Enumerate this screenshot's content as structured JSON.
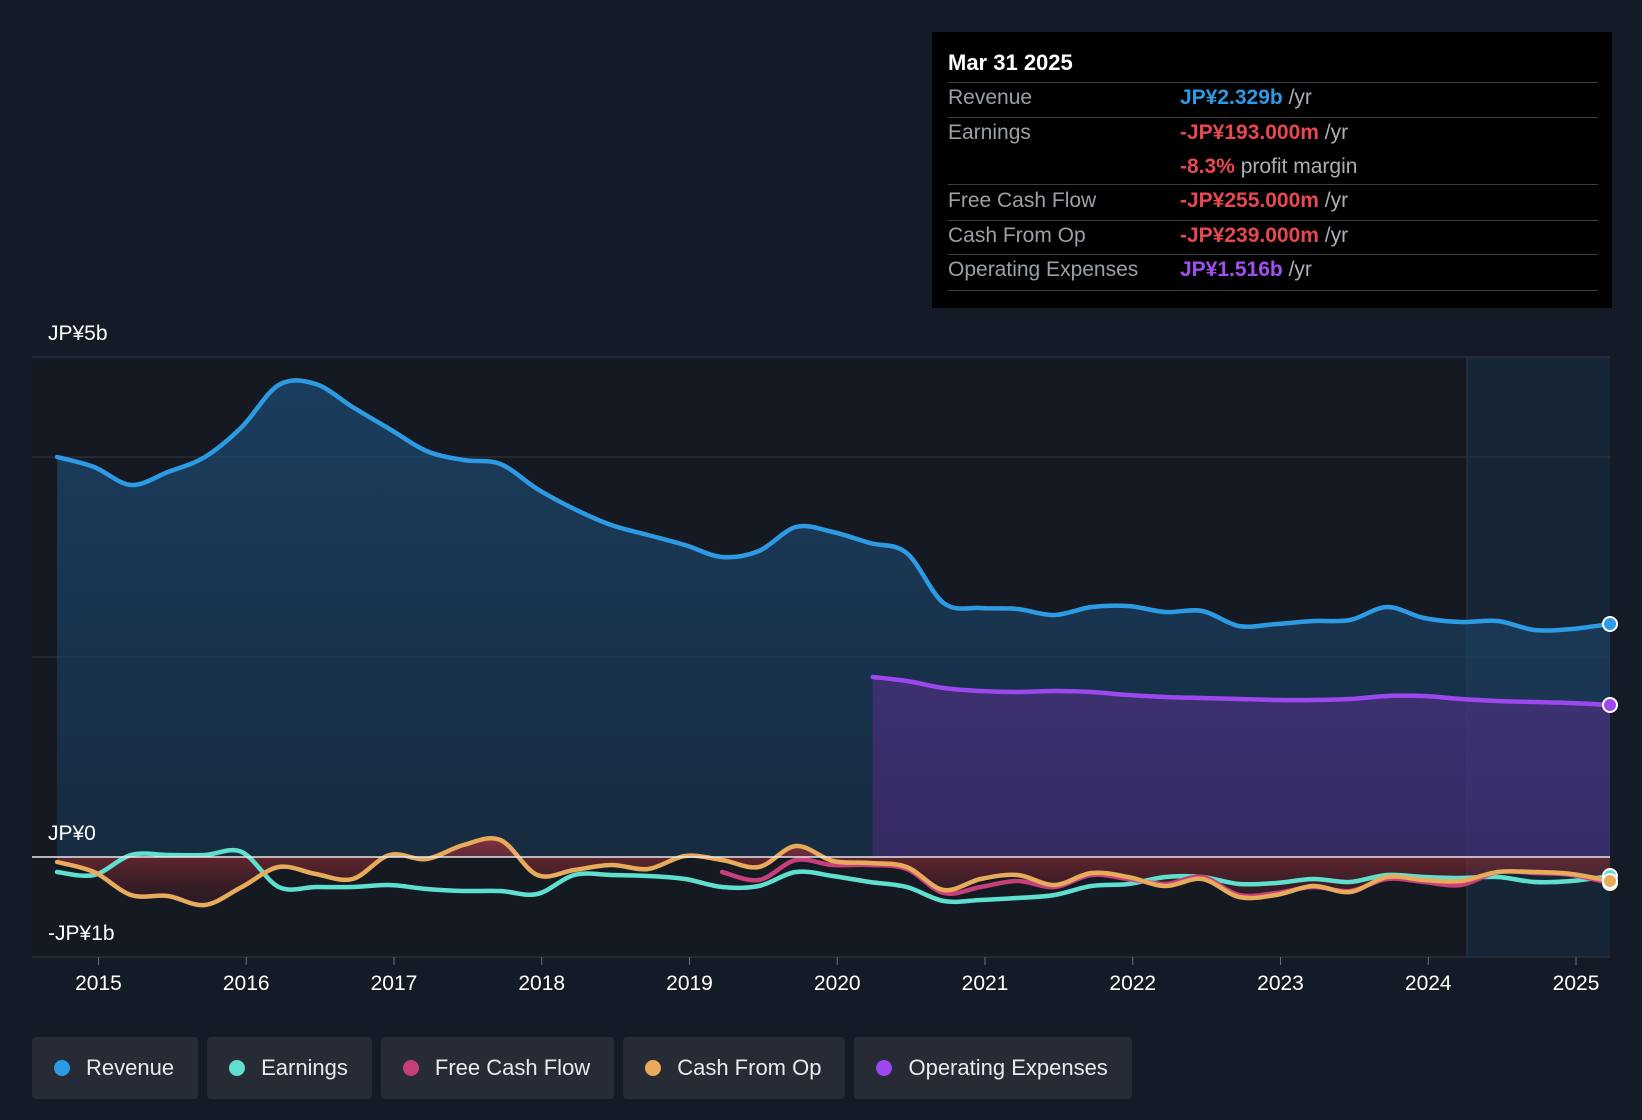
{
  "tooltip": {
    "date": "Mar 31 2025",
    "rows": [
      {
        "label": "Revenue",
        "value": "JP¥2.329b",
        "unit": "/yr",
        "color": "#2d9be4"
      },
      {
        "label": "Earnings",
        "value": "-JP¥193.000m",
        "unit": "/yr",
        "color": "#e8484f"
      },
      {
        "label": "",
        "value": "-8.3%",
        "unit": "profit margin",
        "color": "#e8484f"
      },
      {
        "label": "Free Cash Flow",
        "value": "-JP¥255.000m",
        "unit": "/yr",
        "color": "#e8484f"
      },
      {
        "label": "Cash From Op",
        "value": "-JP¥239.000m",
        "unit": "/yr",
        "color": "#e8484f"
      },
      {
        "label": "Operating Expenses",
        "value": "JP¥1.516b",
        "unit": "/yr",
        "color": "#a24ff0"
      }
    ]
  },
  "legend": [
    {
      "label": "Revenue",
      "color": "#2d9be4"
    },
    {
      "label": "Earnings",
      "color": "#5fe0cf"
    },
    {
      "label": "Free Cash Flow",
      "color": "#c73f7a"
    },
    {
      "label": "Cash From Op",
      "color": "#e8ab5c"
    },
    {
      "label": "Operating Expenses",
      "color": "#9d48ef"
    }
  ],
  "chart_data": {
    "type": "area",
    "y_labels": {
      "top": "JP¥5b",
      "zero": "JP¥0",
      "bottom": "-JP¥1b"
    },
    "ylim": [
      -1,
      5
    ],
    "xlim": [
      2014.55,
      2025.23
    ],
    "x_ticks": [
      "2015",
      "2016",
      "2017",
      "2018",
      "2019",
      "2020",
      "2021",
      "2022",
      "2023",
      "2024",
      "2025"
    ],
    "series": [
      {
        "name": "Revenue",
        "color": "#2d9be4",
        "points": [
          [
            2014.72,
            4.0
          ],
          [
            2014.97,
            3.9
          ],
          [
            2015.22,
            3.72
          ],
          [
            2015.47,
            3.85
          ],
          [
            2015.72,
            4.0
          ],
          [
            2015.97,
            4.3
          ],
          [
            2016.22,
            4.72
          ],
          [
            2016.47,
            4.73
          ],
          [
            2016.72,
            4.5
          ],
          [
            2016.97,
            4.28
          ],
          [
            2017.22,
            4.06
          ],
          [
            2017.47,
            3.97
          ],
          [
            2017.72,
            3.93
          ],
          [
            2017.97,
            3.68
          ],
          [
            2018.22,
            3.48
          ],
          [
            2018.47,
            3.32
          ],
          [
            2018.72,
            3.22
          ],
          [
            2018.97,
            3.12
          ],
          [
            2019.22,
            3.0
          ],
          [
            2019.47,
            3.06
          ],
          [
            2019.72,
            3.3
          ],
          [
            2019.97,
            3.25
          ],
          [
            2020.22,
            3.14
          ],
          [
            2020.47,
            3.04
          ],
          [
            2020.72,
            2.54
          ],
          [
            2020.97,
            2.49
          ],
          [
            2021.22,
            2.48
          ],
          [
            2021.47,
            2.42
          ],
          [
            2021.72,
            2.5
          ],
          [
            2021.97,
            2.51
          ],
          [
            2022.22,
            2.45
          ],
          [
            2022.47,
            2.46
          ],
          [
            2022.72,
            2.31
          ],
          [
            2022.97,
            2.33
          ],
          [
            2023.22,
            2.36
          ],
          [
            2023.47,
            2.37
          ],
          [
            2023.72,
            2.5
          ],
          [
            2023.97,
            2.39
          ],
          [
            2024.22,
            2.35
          ],
          [
            2024.47,
            2.36
          ],
          [
            2024.72,
            2.27
          ],
          [
            2024.97,
            2.28
          ],
          [
            2025.23,
            2.33
          ]
        ]
      },
      {
        "name": "Operating Expenses",
        "color": "#9d48ef",
        "points": [
          [
            2020.24,
            1.8
          ],
          [
            2020.47,
            1.76
          ],
          [
            2020.72,
            1.69
          ],
          [
            2020.97,
            1.66
          ],
          [
            2021.22,
            1.65
          ],
          [
            2021.47,
            1.66
          ],
          [
            2021.72,
            1.65
          ],
          [
            2021.97,
            1.62
          ],
          [
            2022.22,
            1.6
          ],
          [
            2022.47,
            1.59
          ],
          [
            2022.72,
            1.58
          ],
          [
            2022.97,
            1.57
          ],
          [
            2023.22,
            1.57
          ],
          [
            2023.47,
            1.58
          ],
          [
            2023.72,
            1.61
          ],
          [
            2023.97,
            1.61
          ],
          [
            2024.22,
            1.58
          ],
          [
            2024.47,
            1.56
          ],
          [
            2024.72,
            1.55
          ],
          [
            2024.97,
            1.54
          ],
          [
            2025.23,
            1.52
          ]
        ]
      },
      {
        "name": "Earnings",
        "color": "#5fe0cf",
        "points": [
          [
            2014.72,
            -0.15
          ],
          [
            2014.97,
            -0.18
          ],
          [
            2015.22,
            0.02
          ],
          [
            2015.47,
            0.02
          ],
          [
            2015.72,
            0.02
          ],
          [
            2015.97,
            0.05
          ],
          [
            2016.22,
            -0.3
          ],
          [
            2016.47,
            -0.3
          ],
          [
            2016.72,
            -0.3
          ],
          [
            2016.97,
            -0.28
          ],
          [
            2017.22,
            -0.32
          ],
          [
            2017.47,
            -0.34
          ],
          [
            2017.72,
            -0.34
          ],
          [
            2017.97,
            -0.37
          ],
          [
            2018.22,
            -0.18
          ],
          [
            2018.47,
            -0.18
          ],
          [
            2018.72,
            -0.19
          ],
          [
            2018.97,
            -0.22
          ],
          [
            2019.22,
            -0.3
          ],
          [
            2019.47,
            -0.29
          ],
          [
            2019.72,
            -0.15
          ],
          [
            2019.97,
            -0.19
          ],
          [
            2020.22,
            -0.25
          ],
          [
            2020.47,
            -0.3
          ],
          [
            2020.72,
            -0.44
          ],
          [
            2020.97,
            -0.43
          ],
          [
            2021.22,
            -0.41
          ],
          [
            2021.47,
            -0.38
          ],
          [
            2021.72,
            -0.29
          ],
          [
            2021.97,
            -0.27
          ],
          [
            2022.22,
            -0.2
          ],
          [
            2022.47,
            -0.2
          ],
          [
            2022.72,
            -0.27
          ],
          [
            2022.97,
            -0.26
          ],
          [
            2023.22,
            -0.22
          ],
          [
            2023.47,
            -0.25
          ],
          [
            2023.72,
            -0.18
          ],
          [
            2023.97,
            -0.2
          ],
          [
            2024.22,
            -0.21
          ],
          [
            2024.47,
            -0.2
          ],
          [
            2024.72,
            -0.25
          ],
          [
            2024.97,
            -0.24
          ],
          [
            2025.23,
            -0.19
          ]
        ]
      },
      {
        "name": "Free Cash Flow",
        "color": "#c73f7a",
        "points": [
          [
            2019.22,
            -0.15
          ],
          [
            2019.47,
            -0.23
          ],
          [
            2019.72,
            -0.03
          ],
          [
            2019.97,
            -0.08
          ],
          [
            2020.22,
            -0.08
          ],
          [
            2020.47,
            -0.12
          ],
          [
            2020.72,
            -0.36
          ],
          [
            2020.97,
            -0.3
          ],
          [
            2021.22,
            -0.24
          ],
          [
            2021.47,
            -0.3
          ],
          [
            2021.72,
            -0.18
          ],
          [
            2021.97,
            -0.22
          ],
          [
            2022.22,
            -0.27
          ],
          [
            2022.47,
            -0.2
          ],
          [
            2022.72,
            -0.38
          ],
          [
            2022.97,
            -0.36
          ],
          [
            2023.22,
            -0.3
          ],
          [
            2023.47,
            -0.34
          ],
          [
            2023.72,
            -0.22
          ],
          [
            2023.97,
            -0.25
          ],
          [
            2024.22,
            -0.28
          ],
          [
            2024.47,
            -0.15
          ],
          [
            2024.72,
            -0.16
          ],
          [
            2024.97,
            -0.18
          ],
          [
            2025.23,
            -0.26
          ]
        ]
      },
      {
        "name": "Cash From Op",
        "color": "#e8ab5c",
        "points": [
          [
            2014.72,
            -0.05
          ],
          [
            2014.97,
            -0.15
          ],
          [
            2015.22,
            -0.38
          ],
          [
            2015.47,
            -0.39
          ],
          [
            2015.72,
            -0.48
          ],
          [
            2015.97,
            -0.3
          ],
          [
            2016.22,
            -0.1
          ],
          [
            2016.47,
            -0.17
          ],
          [
            2016.72,
            -0.22
          ],
          [
            2016.97,
            0.02
          ],
          [
            2017.22,
            -0.02
          ],
          [
            2017.47,
            0.12
          ],
          [
            2017.72,
            0.17
          ],
          [
            2017.97,
            -0.18
          ],
          [
            2018.22,
            -0.13
          ],
          [
            2018.47,
            -0.08
          ],
          [
            2018.72,
            -0.12
          ],
          [
            2018.97,
            0.01
          ],
          [
            2019.22,
            -0.03
          ],
          [
            2019.47,
            -0.1
          ],
          [
            2019.72,
            0.11
          ],
          [
            2019.97,
            -0.04
          ],
          [
            2020.22,
            -0.06
          ],
          [
            2020.47,
            -0.1
          ],
          [
            2020.72,
            -0.33
          ],
          [
            2020.97,
            -0.22
          ],
          [
            2021.22,
            -0.18
          ],
          [
            2021.47,
            -0.28
          ],
          [
            2021.72,
            -0.16
          ],
          [
            2021.97,
            -0.2
          ],
          [
            2022.22,
            -0.29
          ],
          [
            2022.47,
            -0.22
          ],
          [
            2022.72,
            -0.4
          ],
          [
            2022.97,
            -0.38
          ],
          [
            2023.22,
            -0.29
          ],
          [
            2023.47,
            -0.35
          ],
          [
            2023.72,
            -0.2
          ],
          [
            2023.97,
            -0.23
          ],
          [
            2024.22,
            -0.24
          ],
          [
            2024.47,
            -0.15
          ],
          [
            2024.72,
            -0.15
          ],
          [
            2024.97,
            -0.17
          ],
          [
            2025.23,
            -0.24
          ]
        ]
      }
    ]
  }
}
